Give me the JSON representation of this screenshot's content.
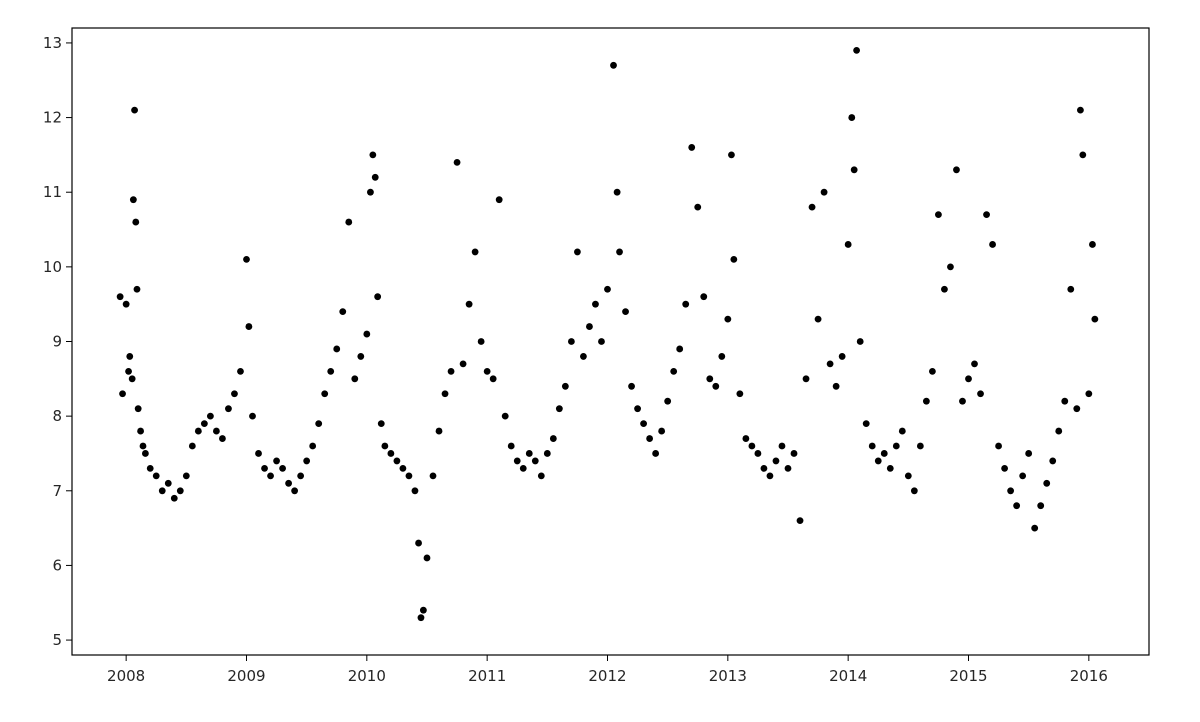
{
  "chart_data": {
    "type": "scatter",
    "title": "",
    "xlabel": "",
    "ylabel": "",
    "xlim": [
      2007.55,
      2016.5
    ],
    "ylim": [
      4.8,
      13.2
    ],
    "grid": false,
    "legend": "none",
    "marker_color": "#000000",
    "x_ticks": [
      2008,
      2009,
      2010,
      2011,
      2012,
      2013,
      2014,
      2015,
      2016
    ],
    "x_tick_labels": [
      "2008",
      "2009",
      "2010",
      "2011",
      "2012",
      "2013",
      "2014",
      "2015",
      "2016"
    ],
    "y_ticks": [
      5,
      6,
      7,
      8,
      9,
      10,
      11,
      12,
      13
    ],
    "y_tick_labels": [
      "5",
      "6",
      "7",
      "8",
      "9",
      "10",
      "11",
      "12",
      "13"
    ],
    "series": [
      {
        "x": [
          2007.95,
          2007.97,
          2008.0,
          2008.02,
          2008.03,
          2008.05,
          2008.06,
          2008.07,
          2008.08,
          2008.09,
          2008.1,
          2008.12,
          2008.14,
          2008.16,
          2008.2,
          2008.25,
          2008.3,
          2008.35,
          2008.4,
          2008.45,
          2008.5,
          2008.55,
          2008.6,
          2008.65,
          2008.7,
          2008.75,
          2008.8,
          2008.85,
          2008.9,
          2008.95,
          2009.0,
          2009.02,
          2009.05,
          2009.1,
          2009.15,
          2009.2,
          2009.25,
          2009.3,
          2009.35,
          2009.4,
          2009.45,
          2009.5,
          2009.55,
          2009.6,
          2009.65,
          2009.7,
          2009.75,
          2009.8,
          2009.85,
          2009.9,
          2009.95,
          2010.0,
          2010.03,
          2010.05,
          2010.07,
          2010.09,
          2010.12,
          2010.15,
          2010.2,
          2010.25,
          2010.3,
          2010.35,
          2010.4,
          2010.43,
          2010.45,
          2010.47,
          2010.5,
          2010.55,
          2010.6,
          2010.65,
          2010.7,
          2010.75,
          2010.8,
          2010.85,
          2010.9,
          2010.95,
          2011.0,
          2011.05,
          2011.1,
          2011.15,
          2011.2,
          2011.25,
          2011.3,
          2011.35,
          2011.4,
          2011.45,
          2011.5,
          2011.55,
          2011.6,
          2011.65,
          2011.7,
          2011.75,
          2011.8,
          2011.85,
          2011.9,
          2011.95,
          2012.0,
          2012.05,
          2012.08,
          2012.1,
          2012.15,
          2012.2,
          2012.25,
          2012.3,
          2012.35,
          2012.4,
          2012.45,
          2012.5,
          2012.55,
          2012.6,
          2012.65,
          2012.7,
          2012.75,
          2012.8,
          2012.85,
          2012.9,
          2012.95,
          2013.0,
          2013.03,
          2013.05,
          2013.1,
          2013.15,
          2013.2,
          2013.25,
          2013.3,
          2013.35,
          2013.4,
          2013.45,
          2013.5,
          2013.55,
          2013.6,
          2013.65,
          2013.7,
          2013.75,
          2013.8,
          2013.85,
          2013.9,
          2013.95,
          2014.0,
          2014.03,
          2014.05,
          2014.07,
          2014.1,
          2014.15,
          2014.2,
          2014.25,
          2014.3,
          2014.35,
          2014.4,
          2014.45,
          2014.5,
          2014.55,
          2014.6,
          2014.65,
          2014.7,
          2014.75,
          2014.8,
          2014.85,
          2014.9,
          2014.95,
          2015.0,
          2015.05,
          2015.1,
          2015.15,
          2015.2,
          2015.25,
          2015.3,
          2015.35,
          2015.4,
          2015.45,
          2015.5,
          2015.55,
          2015.6,
          2015.65,
          2015.7,
          2015.75,
          2015.8,
          2015.85,
          2015.9,
          2015.93,
          2015.95,
          2016.0,
          2016.03,
          2016.05
        ],
        "y": [
          9.6,
          8.3,
          9.5,
          8.6,
          8.8,
          8.5,
          10.9,
          12.1,
          10.6,
          9.7,
          8.1,
          7.8,
          7.6,
          7.5,
          7.3,
          7.2,
          7.0,
          7.1,
          6.9,
          7.0,
          7.2,
          7.6,
          7.8,
          7.9,
          8.0,
          7.8,
          7.7,
          8.1,
          8.3,
          8.6,
          10.1,
          9.2,
          8.0,
          7.5,
          7.3,
          7.2,
          7.4,
          7.3,
          7.1,
          7.0,
          7.2,
          7.4,
          7.6,
          7.9,
          8.3,
          8.6,
          8.9,
          9.4,
          10.6,
          8.5,
          8.8,
          9.1,
          11.0,
          11.5,
          11.2,
          9.6,
          7.9,
          7.6,
          7.5,
          7.4,
          7.3,
          7.2,
          7.0,
          6.3,
          5.3,
          5.4,
          6.1,
          7.2,
          7.8,
          8.3,
          8.6,
          11.4,
          8.7,
          9.5,
          10.2,
          9.0,
          8.6,
          8.5,
          10.9,
          8.0,
          7.6,
          7.4,
          7.3,
          7.5,
          7.4,
          7.2,
          7.5,
          7.7,
          8.1,
          8.4,
          9.0,
          10.2,
          8.8,
          9.2,
          9.5,
          9.0,
          9.7,
          12.7,
          11.0,
          10.2,
          9.4,
          8.4,
          8.1,
          7.9,
          7.7,
          7.5,
          7.8,
          8.2,
          8.6,
          8.9,
          9.5,
          11.6,
          10.8,
          9.6,
          8.5,
          8.4,
          8.8,
          9.3,
          11.5,
          10.1,
          8.3,
          7.7,
          7.6,
          7.5,
          7.3,
          7.2,
          7.4,
          7.6,
          7.3,
          7.5,
          6.6,
          8.5,
          10.8,
          9.3,
          11.0,
          8.7,
          8.4,
          8.8,
          10.3,
          12.0,
          11.3,
          12.9,
          9.0,
          7.9,
          7.6,
          7.4,
          7.5,
          7.3,
          7.6,
          7.8,
          7.2,
          7.0,
          7.6,
          8.2,
          8.6,
          10.7,
          9.7,
          10.0,
          11.3,
          8.2,
          8.5,
          8.7,
          8.3,
          10.7,
          10.3,
          7.6,
          7.3,
          7.0,
          6.8,
          7.2,
          7.5,
          6.5,
          6.8,
          7.1,
          7.4,
          7.8,
          8.2,
          9.7,
          8.1,
          12.1,
          11.5,
          8.3,
          10.3,
          9.3
        ]
      }
    ]
  }
}
